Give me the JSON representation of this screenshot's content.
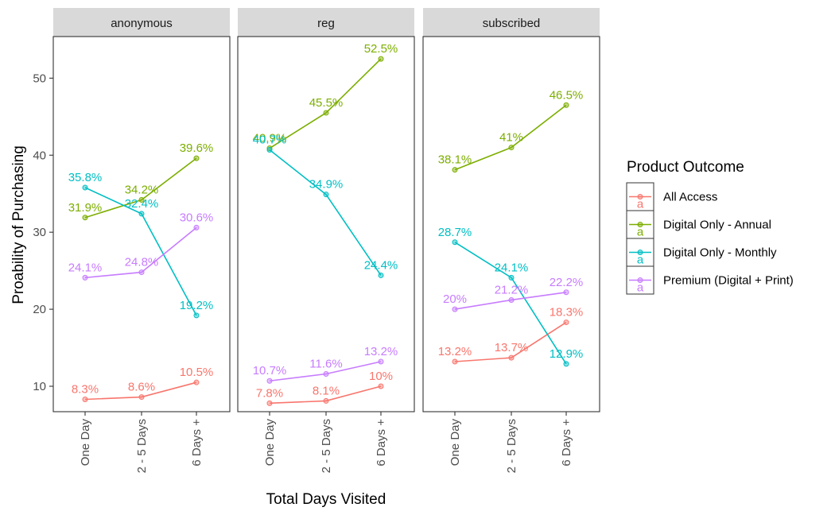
{
  "chart_data": {
    "type": "line",
    "xlabel": "Total Days Visited",
    "ylabel": "Proability of Purchasing",
    "categories": [
      "One Day",
      "2 - 5 Days",
      "6 Days +"
    ],
    "ylim": [
      6.7,
      55.4
    ],
    "yticks": [
      10,
      20,
      30,
      40,
      50
    ],
    "grid": false,
    "legend": {
      "title": "Product Outcome",
      "placement": "right",
      "entries": [
        {
          "name": "All Access",
          "color": "#F8766D"
        },
        {
          "name": "Digital Only - Annual",
          "color": "#7CAE00"
        },
        {
          "name": "Digital Only - Monthly",
          "color": "#00BFC4"
        },
        {
          "name": "Premium (Digital + Print)",
          "color": "#C77CFF"
        }
      ],
      "stray_glyph": "a"
    },
    "panels": [
      {
        "title": "anonymous",
        "series": [
          {
            "name": "All Access",
            "color": "#F8766D",
            "values": [
              8.3,
              8.6,
              10.5
            ],
            "labels": [
              "8.3%",
              "8.6%",
              "10.5%"
            ]
          },
          {
            "name": "Digital Only - Annual",
            "color": "#7CAE00",
            "values": [
              31.9,
              34.2,
              39.6
            ],
            "labels": [
              "31.9%",
              "34.2%",
              "39.6%"
            ]
          },
          {
            "name": "Digital Only - Monthly",
            "color": "#00BFC4",
            "values": [
              35.8,
              32.4,
              19.2
            ],
            "labels": [
              "35.8%",
              "32.4%",
              "19.2%"
            ]
          },
          {
            "name": "Premium (Digital + Print)",
            "color": "#C77CFF",
            "values": [
              24.1,
              24.8,
              30.6
            ],
            "labels": [
              "24.1%",
              "24.8%",
              "30.6%"
            ]
          }
        ]
      },
      {
        "title": "reg",
        "series": [
          {
            "name": "All Access",
            "color": "#F8766D",
            "values": [
              7.8,
              8.1,
              10.0
            ],
            "labels": [
              "7.8%",
              "8.1%",
              "10%"
            ]
          },
          {
            "name": "Digital Only - Annual",
            "color": "#7CAE00",
            "values": [
              40.9,
              45.5,
              52.5
            ],
            "labels": [
              "40.9%",
              "45.5%",
              "52.5%"
            ]
          },
          {
            "name": "Digital Only - Monthly",
            "color": "#00BFC4",
            "values": [
              40.7,
              34.9,
              24.4
            ],
            "labels": [
              "40.7%",
              "34.9%",
              "24.4%"
            ]
          },
          {
            "name": "Premium (Digital + Print)",
            "color": "#C77CFF",
            "values": [
              10.7,
              11.6,
              13.2
            ],
            "labels": [
              "10.7%",
              "11.6%",
              "13.2%"
            ]
          }
        ]
      },
      {
        "title": "subscribed",
        "series": [
          {
            "name": "All Access",
            "color": "#F8766D",
            "values": [
              13.2,
              13.7,
              18.3
            ],
            "labels": [
              "13.2%",
              "13.7%",
              "18.3%"
            ]
          },
          {
            "name": "Digital Only - Annual",
            "color": "#7CAE00",
            "values": [
              38.1,
              41.0,
              46.5
            ],
            "labels": [
              "38.1%",
              "41%",
              "46.5%"
            ]
          },
          {
            "name": "Digital Only - Monthly",
            "color": "#00BFC4",
            "values": [
              28.7,
              24.1,
              12.9
            ],
            "labels": [
              "28.7%",
              "24.1%",
              "12.9%"
            ]
          },
          {
            "name": "Premium (Digital + Print)",
            "color": "#C77CFF",
            "values": [
              20.0,
              21.2,
              22.2
            ],
            "labels": [
              "20%",
              "21.2%",
              "22.2%"
            ]
          }
        ]
      }
    ]
  }
}
